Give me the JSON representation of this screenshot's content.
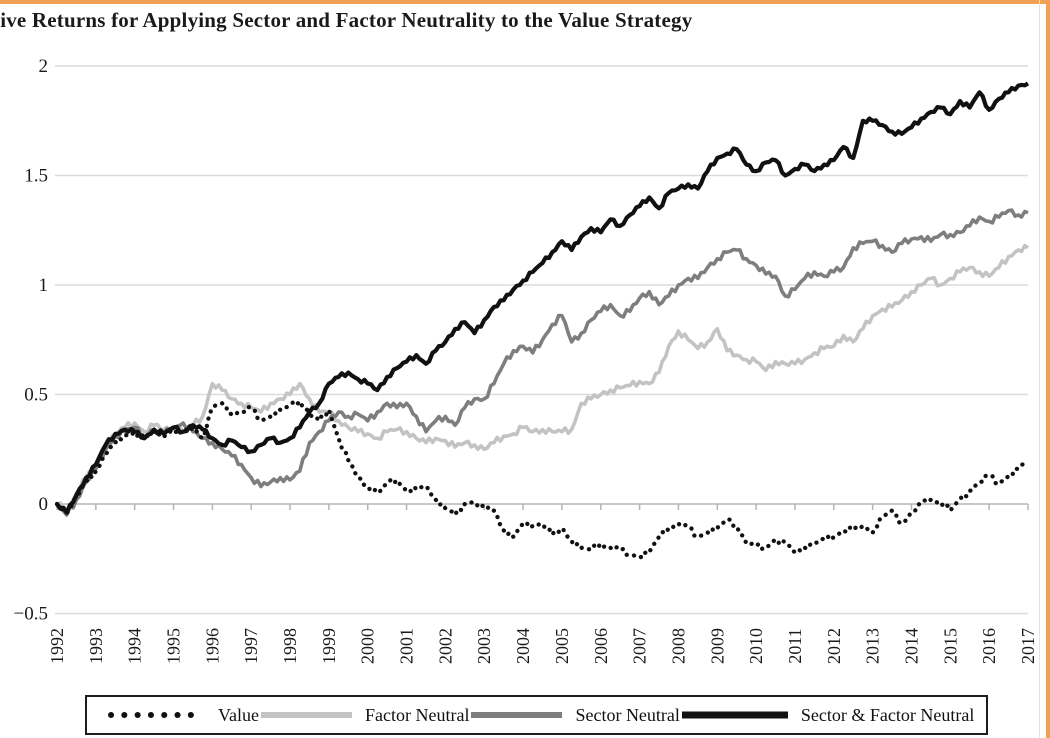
{
  "page": {
    "border_color": "#f1a156",
    "background": "#ffffff"
  },
  "chart_data": {
    "type": "line",
    "title": "tive Returns for Applying Sector and Factor Neutrality to the Value Strategy",
    "xlabel": "",
    "ylabel": "",
    "xlim": [
      1992,
      2017
    ],
    "ylim": [
      -0.5,
      2
    ],
    "grid": "horizontal",
    "legend_position": "bottom",
    "x_start": 1992,
    "x_step": 0.25,
    "x_tick_labels": [
      "1992",
      "1993",
      "1994",
      "1995",
      "1996",
      "1997",
      "1998",
      "1999",
      "2000",
      "2001",
      "2002",
      "2003",
      "2004",
      "2005",
      "2006",
      "2007",
      "2008",
      "2009",
      "2010",
      "2011",
      "2012",
      "2013",
      "2014",
      "2015",
      "2016",
      "2017"
    ],
    "y_ticks": [
      {
        "value": 2,
        "label": "2"
      },
      {
        "value": 1.5,
        "label": "1.5"
      },
      {
        "value": 1,
        "label": "1"
      },
      {
        "value": 0.5,
        "label": "0.5"
      },
      {
        "value": 0,
        "label": "0"
      },
      {
        "value": -0.5,
        "label": "−0.5"
      }
    ],
    "series": [
      {
        "name": "Value",
        "style": "dotted",
        "color": "#111111",
        "values": [
          0.0,
          -0.04,
          0.03,
          0.1,
          0.15,
          0.23,
          0.28,
          0.31,
          0.33,
          0.3,
          0.33,
          0.31,
          0.34,
          0.32,
          0.35,
          0.3,
          0.44,
          0.46,
          0.41,
          0.42,
          0.44,
          0.38,
          0.4,
          0.43,
          0.45,
          0.47,
          0.41,
          0.38,
          0.43,
          0.3,
          0.2,
          0.12,
          0.08,
          0.05,
          0.09,
          0.11,
          0.06,
          0.07,
          0.08,
          0.02,
          -0.02,
          -0.05,
          0.0,
          0.01,
          -0.02,
          -0.03,
          -0.12,
          -0.15,
          -0.09,
          -0.1,
          -0.09,
          -0.14,
          -0.11,
          -0.17,
          -0.2,
          -0.21,
          -0.18,
          -0.2,
          -0.21,
          -0.23,
          -0.24,
          -0.22,
          -0.15,
          -0.11,
          -0.09,
          -0.11,
          -0.15,
          -0.13,
          -0.11,
          -0.07,
          -0.1,
          -0.18,
          -0.19,
          -0.2,
          -0.16,
          -0.18,
          -0.22,
          -0.2,
          -0.18,
          -0.16,
          -0.15,
          -0.12,
          -0.12,
          -0.1,
          -0.13,
          -0.06,
          -0.03,
          -0.09,
          -0.04,
          0.0,
          0.02,
          0.01,
          -0.03,
          0.02,
          0.06,
          0.1,
          0.13,
          0.09,
          0.13,
          0.16,
          0.2
        ]
      },
      {
        "name": "Factor Neutral",
        "style": "solid",
        "color": "#c3c3c3",
        "values": [
          0.0,
          -0.03,
          0.05,
          0.12,
          0.18,
          0.26,
          0.32,
          0.35,
          0.37,
          0.33,
          0.36,
          0.34,
          0.35,
          0.33,
          0.36,
          0.4,
          0.55,
          0.52,
          0.48,
          0.46,
          0.44,
          0.42,
          0.46,
          0.48,
          0.5,
          0.55,
          0.48,
          0.42,
          0.42,
          0.38,
          0.35,
          0.33,
          0.32,
          0.3,
          0.33,
          0.34,
          0.33,
          0.3,
          0.28,
          0.3,
          0.29,
          0.26,
          0.28,
          0.27,
          0.25,
          0.28,
          0.31,
          0.32,
          0.35,
          0.33,
          0.34,
          0.33,
          0.33,
          0.34,
          0.46,
          0.48,
          0.5,
          0.52,
          0.53,
          0.54,
          0.56,
          0.55,
          0.6,
          0.72,
          0.79,
          0.75,
          0.71,
          0.74,
          0.8,
          0.7,
          0.68,
          0.66,
          0.65,
          0.61,
          0.65,
          0.64,
          0.64,
          0.66,
          0.69,
          0.71,
          0.72,
          0.77,
          0.74,
          0.8,
          0.86,
          0.89,
          0.9,
          0.93,
          0.97,
          1.0,
          1.03,
          1.0,
          1.03,
          1.06,
          1.08,
          1.06,
          1.04,
          1.08,
          1.13,
          1.16,
          1.17
        ]
      },
      {
        "name": "Sector Neutral",
        "style": "solid",
        "color": "#7e7e7e",
        "values": [
          0.0,
          -0.05,
          0.02,
          0.1,
          0.16,
          0.25,
          0.31,
          0.33,
          0.35,
          0.31,
          0.34,
          0.32,
          0.35,
          0.37,
          0.33,
          0.3,
          0.28,
          0.25,
          0.22,
          0.18,
          0.12,
          0.08,
          0.1,
          0.12,
          0.11,
          0.15,
          0.28,
          0.33,
          0.38,
          0.42,
          0.4,
          0.41,
          0.38,
          0.42,
          0.46,
          0.44,
          0.46,
          0.4,
          0.33,
          0.38,
          0.4,
          0.36,
          0.44,
          0.48,
          0.48,
          0.55,
          0.64,
          0.7,
          0.72,
          0.69,
          0.75,
          0.82,
          0.86,
          0.74,
          0.78,
          0.84,
          0.88,
          0.91,
          0.86,
          0.88,
          0.94,
          0.97,
          0.91,
          0.95,
          1.0,
          1.03,
          1.03,
          1.08,
          1.12,
          1.15,
          1.16,
          1.12,
          1.09,
          1.05,
          1.04,
          0.95,
          0.98,
          1.03,
          1.06,
          1.04,
          1.06,
          1.08,
          1.17,
          1.19,
          1.2,
          1.18,
          1.15,
          1.19,
          1.21,
          1.22,
          1.2,
          1.23,
          1.23,
          1.24,
          1.27,
          1.31,
          1.29,
          1.31,
          1.34,
          1.32,
          1.33
        ]
      },
      {
        "name": "Sector & Factor Neutral",
        "style": "solid",
        "color": "#111111",
        "values": [
          0.0,
          -0.04,
          0.04,
          0.12,
          0.18,
          0.27,
          0.32,
          0.34,
          0.33,
          0.3,
          0.34,
          0.32,
          0.35,
          0.33,
          0.36,
          0.34,
          0.3,
          0.27,
          0.29,
          0.26,
          0.24,
          0.27,
          0.3,
          0.28,
          0.3,
          0.35,
          0.42,
          0.46,
          0.55,
          0.58,
          0.6,
          0.57,
          0.55,
          0.52,
          0.58,
          0.62,
          0.65,
          0.68,
          0.64,
          0.7,
          0.74,
          0.8,
          0.83,
          0.78,
          0.84,
          0.9,
          0.93,
          0.98,
          1.02,
          1.06,
          1.1,
          1.15,
          1.2,
          1.16,
          1.22,
          1.26,
          1.24,
          1.3,
          1.27,
          1.32,
          1.36,
          1.4,
          1.35,
          1.42,
          1.44,
          1.46,
          1.44,
          1.52,
          1.58,
          1.6,
          1.62,
          1.55,
          1.52,
          1.56,
          1.57,
          1.5,
          1.53,
          1.55,
          1.52,
          1.55,
          1.57,
          1.63,
          1.58,
          1.75,
          1.75,
          1.73,
          1.7,
          1.69,
          1.72,
          1.76,
          1.79,
          1.81,
          1.78,
          1.84,
          1.81,
          1.88,
          1.8,
          1.85,
          1.88,
          1.91,
          1.92
        ]
      }
    ],
    "colors": {
      "gridline": "#dcdcdc",
      "zero_axis": "#b5b5b5",
      "tick": "#b5b5b5",
      "label": "#1a1a1a"
    }
  },
  "legend": {
    "items": [
      {
        "label": "Value"
      },
      {
        "label": "Factor Neutral"
      },
      {
        "label": "Sector Neutral"
      },
      {
        "label": "Sector & Factor Neutral"
      }
    ]
  }
}
